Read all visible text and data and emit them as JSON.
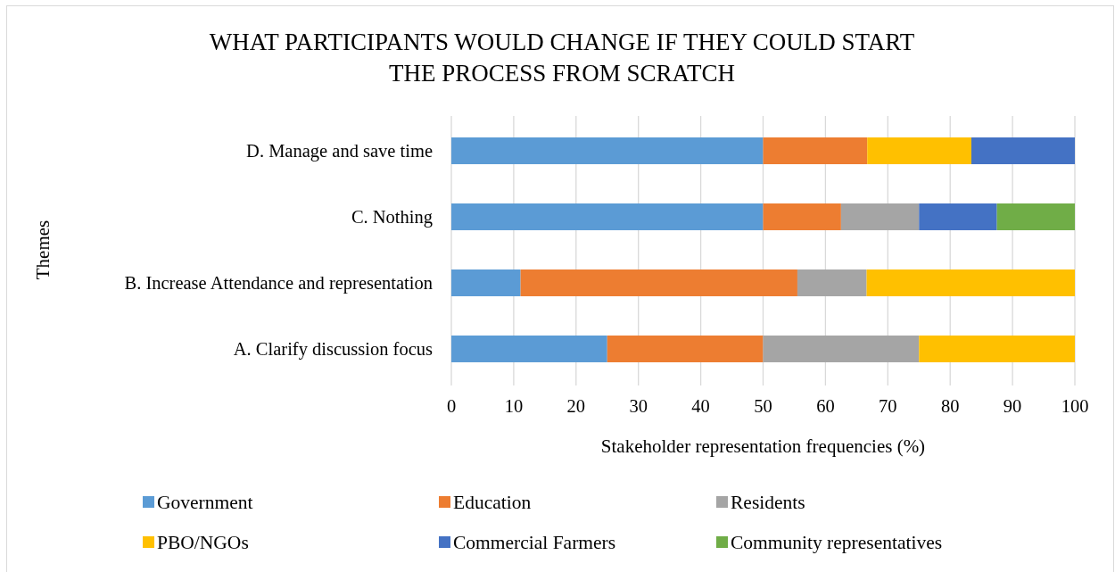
{
  "chart_data": {
    "type": "bar",
    "orientation": "horizontal",
    "stacked": true,
    "title": "WHAT PARTICIPANTS WOULD CHANGE IF THEY COULD START THE PROCESS FROM SCRATCH",
    "xlabel": "Stakeholder representation frequencies (%)",
    "ylabel": "Themes",
    "categories": [
      "D. Manage and save time",
      "C. Nothing",
      "B. Increase Attendance and representation",
      "A. Clarify discussion focus"
    ],
    "series": [
      {
        "name": "Government",
        "color": "#5b9bd5",
        "values": [
          50,
          50,
          11.1,
          25
        ]
      },
      {
        "name": "Education",
        "color": "#ed7d31",
        "values": [
          16.7,
          12.5,
          44.4,
          25
        ]
      },
      {
        "name": "Residents",
        "color": "#a5a5a5",
        "values": [
          null,
          12.5,
          11.1,
          25
        ]
      },
      {
        "name": "PBO/NGOs",
        "color": "#ffc000",
        "values": [
          16.7,
          null,
          33.4,
          25
        ]
      },
      {
        "name": "Commercial Farmers",
        "color": "#4472c4",
        "values": [
          16.6,
          12.5,
          null,
          null
        ]
      },
      {
        "name": "Community representatives",
        "color": "#70ad47",
        "values": [
          null,
          12.5,
          null,
          null
        ]
      }
    ],
    "xlim": [
      0,
      100
    ],
    "xticks": [
      0,
      10,
      20,
      30,
      40,
      50,
      60,
      70,
      80,
      90,
      100
    ],
    "grid": "x",
    "legend": "bottom"
  }
}
